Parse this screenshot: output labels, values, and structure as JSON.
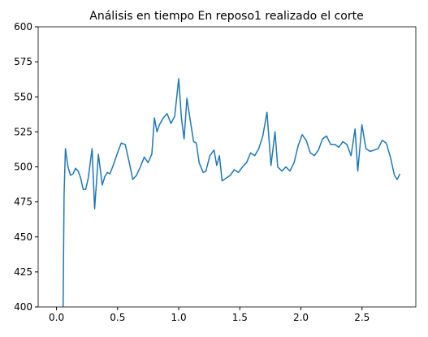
{
  "chart_data": {
    "type": "line",
    "title": "Análisis en tiempo En reposo1 realizado el corte",
    "x": [
      0.052,
      0.062,
      0.073,
      0.094,
      0.114,
      0.135,
      0.156,
      0.177,
      0.198,
      0.218,
      0.239,
      0.26,
      0.291,
      0.312,
      0.343,
      0.374,
      0.395,
      0.416,
      0.437,
      0.468,
      0.499,
      0.53,
      0.562,
      0.593,
      0.624,
      0.655,
      0.686,
      0.718,
      0.749,
      0.78,
      0.801,
      0.822,
      0.842,
      0.874,
      0.905,
      0.936,
      0.967,
      1.0,
      1.022,
      1.044,
      1.067,
      1.1,
      1.122,
      1.144,
      1.167,
      1.2,
      1.222,
      1.255,
      1.289,
      1.311,
      1.333,
      1.355,
      1.389,
      1.422,
      1.455,
      1.488,
      1.522,
      1.555,
      1.588,
      1.622,
      1.655,
      1.688,
      1.722,
      1.755,
      1.788,
      1.81,
      1.844,
      1.877,
      1.91,
      1.944,
      1.977,
      2.01,
      2.043,
      2.077,
      2.11,
      2.143,
      2.177,
      2.21,
      2.243,
      2.277,
      2.31,
      2.343,
      2.376,
      2.41,
      2.443,
      2.465,
      2.499,
      2.532,
      2.565,
      2.599,
      2.632,
      2.665,
      2.698,
      2.732,
      2.765,
      2.787,
      2.81
    ],
    "values": [
      380,
      480,
      513,
      500,
      494,
      495,
      499,
      497,
      492,
      484,
      484,
      492,
      513,
      470,
      509,
      487,
      493,
      496,
      495,
      502,
      510,
      517,
      516,
      504,
      491,
      494,
      500,
      507,
      503,
      509,
      535,
      525,
      530,
      535,
      538,
      531,
      536,
      563,
      535,
      520,
      549,
      530,
      518,
      517,
      503,
      496,
      497,
      508,
      512,
      501,
      508,
      490,
      492,
      494,
      498,
      496,
      500,
      503,
      510,
      508,
      513,
      522,
      539,
      501,
      525,
      500,
      497,
      500,
      497,
      503,
      515,
      523,
      519,
      510,
      508,
      512,
      520,
      522,
      516,
      516,
      514,
      518,
      516,
      508,
      527,
      497,
      530,
      513,
      511,
      512,
      513,
      519,
      517,
      507,
      494,
      491,
      495
    ],
    "color": "#1f77b4",
    "xlim": [
      -0.15,
      2.94
    ],
    "ylim": [
      400,
      600
    ],
    "xticks": [
      {
        "value": 0,
        "label": "0.0"
      },
      0.5,
      {
        "value": 1,
        "label": "1.0"
      },
      1.5,
      {
        "value": 2,
        "label": "2.0"
      },
      2.5
    ],
    "yticks": [
      400,
      425,
      450,
      475,
      500,
      525,
      550,
      575,
      600
    ]
  }
}
